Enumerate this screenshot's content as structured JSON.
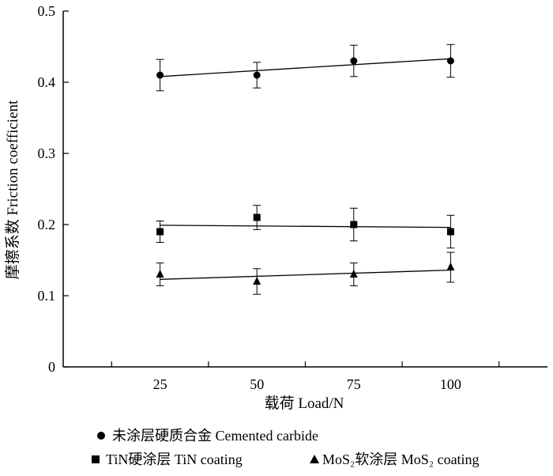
{
  "chart_data": {
    "type": "scatter",
    "xlabel": "载荷 Load/N",
    "ylabel": "摩擦系数 Friction coefficient",
    "x_ticks": [
      "25",
      "50",
      "75",
      "100"
    ],
    "y_ticks": [
      "0",
      "0.1",
      "0.2",
      "0.3",
      "0.4",
      "0.5"
    ],
    "xlim": [
      0,
      125
    ],
    "ylim": [
      0,
      0.5
    ],
    "grid": false,
    "legend_position": "bottom",
    "series": [
      {
        "name": "未涂层硬质合金 Cemented carbide",
        "marker": "circle",
        "x": [
          25,
          50,
          75,
          100
        ],
        "y": [
          0.41,
          0.41,
          0.43,
          0.43
        ],
        "error": [
          0.022,
          0.018,
          0.022,
          0.023
        ],
        "trend": [
          0.408,
          0.433
        ]
      },
      {
        "name": "TiN硬涂层 TiN coating",
        "marker": "square",
        "x": [
          25,
          50,
          75,
          100
        ],
        "y": [
          0.19,
          0.21,
          0.2,
          0.19
        ],
        "error": [
          0.015,
          0.017,
          0.023,
          0.023
        ],
        "trend": [
          0.199,
          0.196
        ]
      },
      {
        "name": "MoS₂软涂层 MoS₂ coating",
        "marker": "triangle",
        "x": [
          25,
          50,
          75,
          100
        ],
        "y": [
          0.13,
          0.12,
          0.13,
          0.14
        ],
        "error": [
          0.016,
          0.018,
          0.016,
          0.021
        ],
        "trend": [
          0.123,
          0.136
        ]
      }
    ]
  }
}
